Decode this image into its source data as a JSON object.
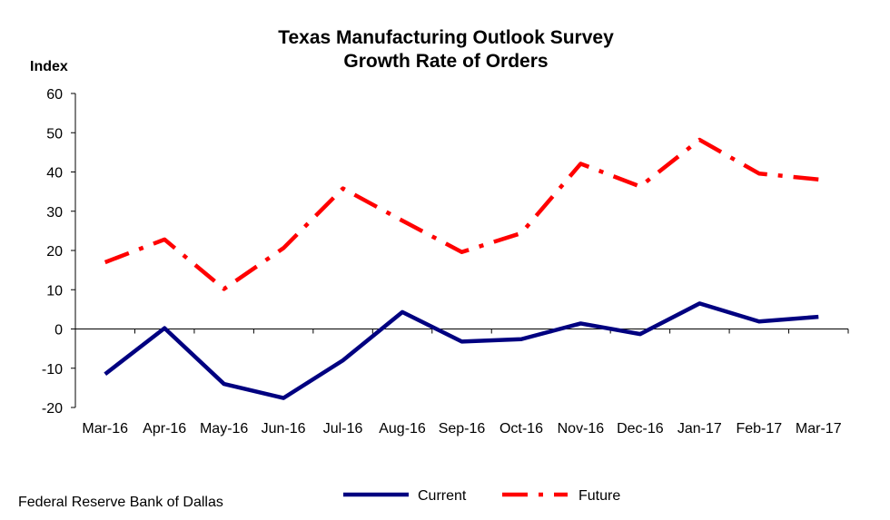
{
  "chart_data": {
    "type": "line",
    "title": "Texas Manufacturing Outlook Survey",
    "subtitle": "Growth Rate of Orders",
    "ylabel": "Index",
    "xlabel": "",
    "ylim": [
      -20,
      60
    ],
    "yticks": [
      60,
      50,
      40,
      30,
      20,
      10,
      0,
      -10,
      -20
    ],
    "ytick_labels": [
      "60",
      "50",
      "40",
      "30",
      "20",
      "10",
      "0",
      "-10",
      "-20"
    ],
    "categories": [
      "Mar-16",
      "Apr-16",
      "May-16",
      "Jun-16",
      "Jul-16",
      "Aug-16",
      "Sep-16",
      "Oct-16",
      "Nov-16",
      "Dec-16",
      "Jan-17",
      "Feb-17",
      "Mar-17"
    ],
    "grid": false,
    "legend_position": "bottom",
    "series": [
      {
        "name": "Current",
        "color": "#000080",
        "style": "solid",
        "values": [
          -11.5,
          0.2,
          -14.0,
          -17.6,
          -8.0,
          4.3,
          -3.2,
          -2.6,
          1.4,
          -1.3,
          6.5,
          1.9,
          3.1
        ]
      },
      {
        "name": "Future",
        "color": "#ff0000",
        "style": "dash-dot",
        "values": [
          17.0,
          22.8,
          10.2,
          20.6,
          35.8,
          27.6,
          19.6,
          24.4,
          42.1,
          36.3,
          48.2,
          39.6,
          38.1
        ]
      }
    ]
  },
  "source": "Federal Reserve Bank of Dallas"
}
